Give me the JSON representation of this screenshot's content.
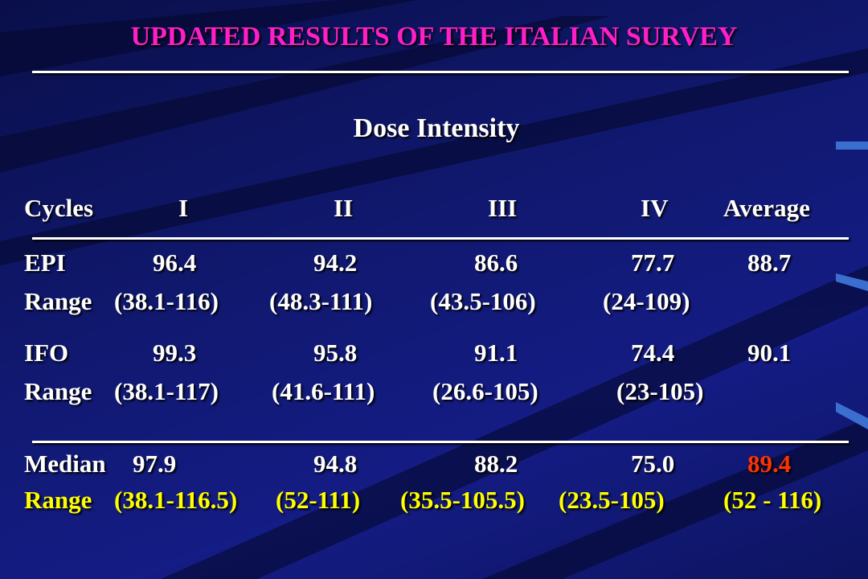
{
  "title": "UPDATED RESULTS OF THE ITALIAN SURVEY",
  "subtitle": "Dose Intensity",
  "table": {
    "header": [
      "Cycles",
      "I",
      "II",
      "III",
      "IV",
      "Average"
    ],
    "rows": [
      [
        "EPI",
        "96.4",
        "94.2",
        "86.6",
        "77.7",
        "88.7"
      ],
      [
        "Range",
        "(38.1-116)",
        "(48.3-111)",
        "(43.5-106)",
        "(24-109)"
      ],
      [
        "IFO",
        "99.3",
        "95.8",
        "91.1",
        "74.4",
        "90.1"
      ],
      [
        "Range",
        "(38.1-117)",
        "(41.6-111)",
        "(26.6-105)",
        "(23-105)"
      ],
      [
        "Median",
        "97.9",
        "94.8",
        "88.2",
        "75.0",
        "89.4"
      ],
      [
        "Range",
        "(38.1-116.5)",
        "(52-111)",
        "(35.5-105.5)",
        "(23.5-105)",
        "(52 - 116)"
      ]
    ]
  }
}
